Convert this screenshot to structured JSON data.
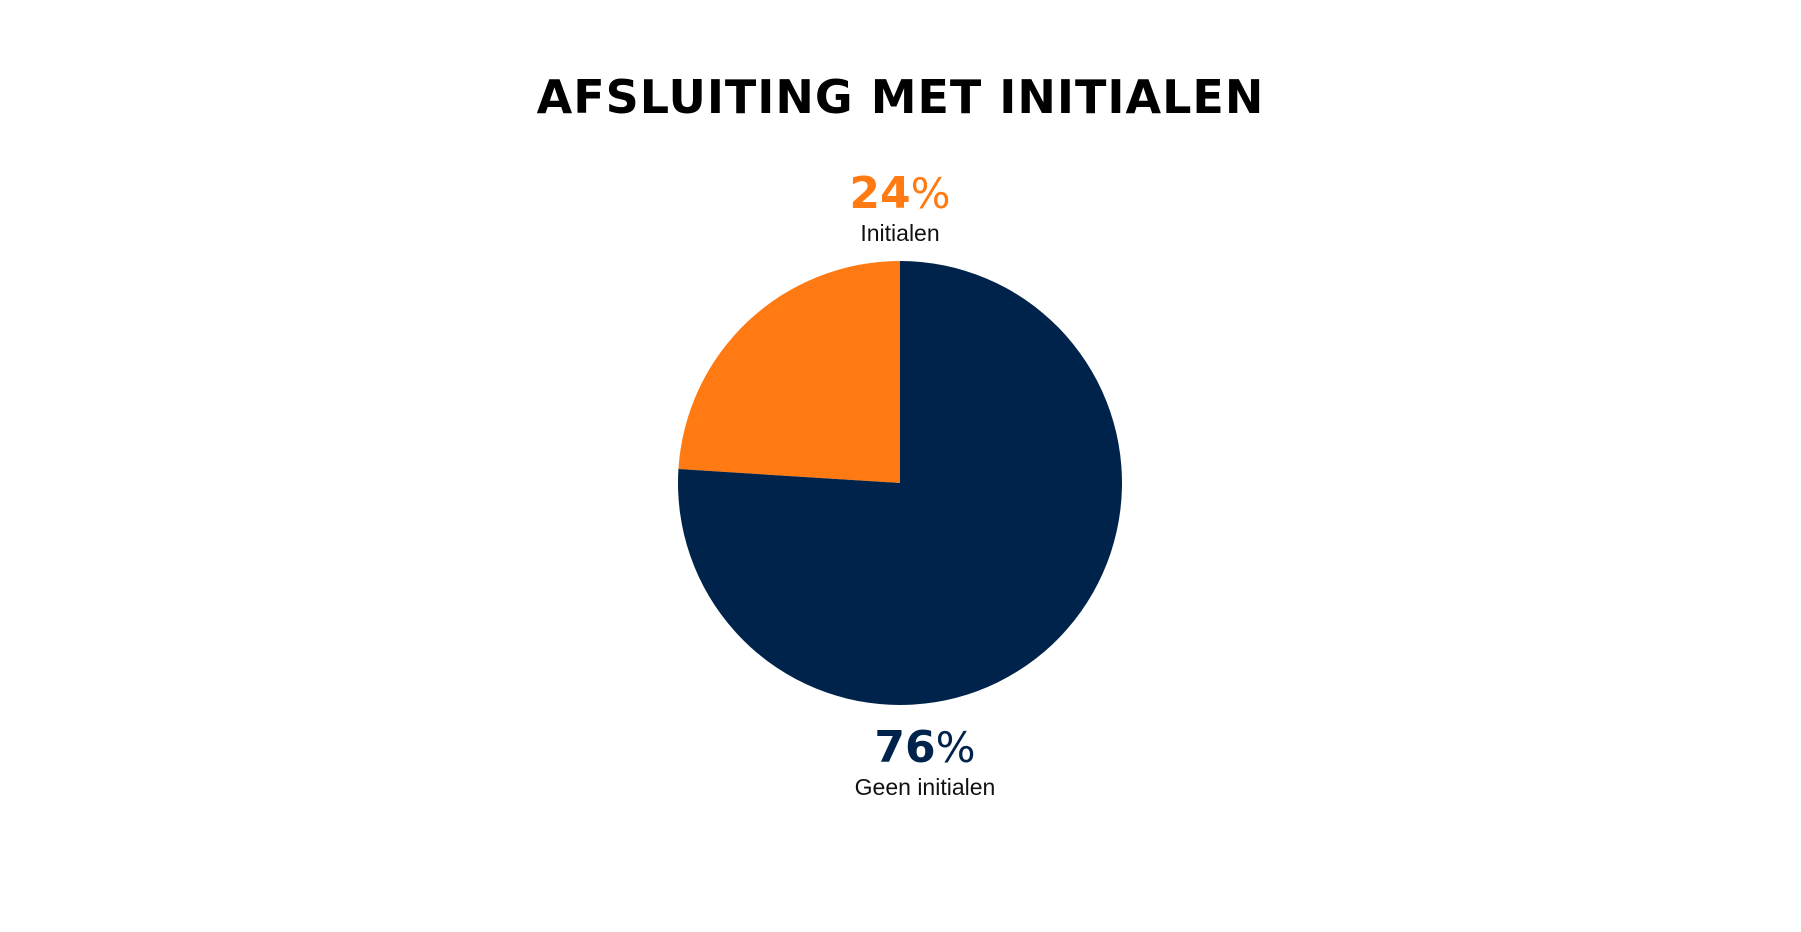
{
  "chart_data": {
    "type": "pie",
    "title": "AFSLUITING MET INITIALEN",
    "slices": [
      {
        "label": "Initialen",
        "value": 24,
        "display": "24",
        "unit": "%",
        "color": "#FF7A12"
      },
      {
        "label": "Geen initialen",
        "value": 76,
        "display": "76",
        "unit": "%",
        "color": "#00234B"
      }
    ],
    "legend": "none"
  }
}
